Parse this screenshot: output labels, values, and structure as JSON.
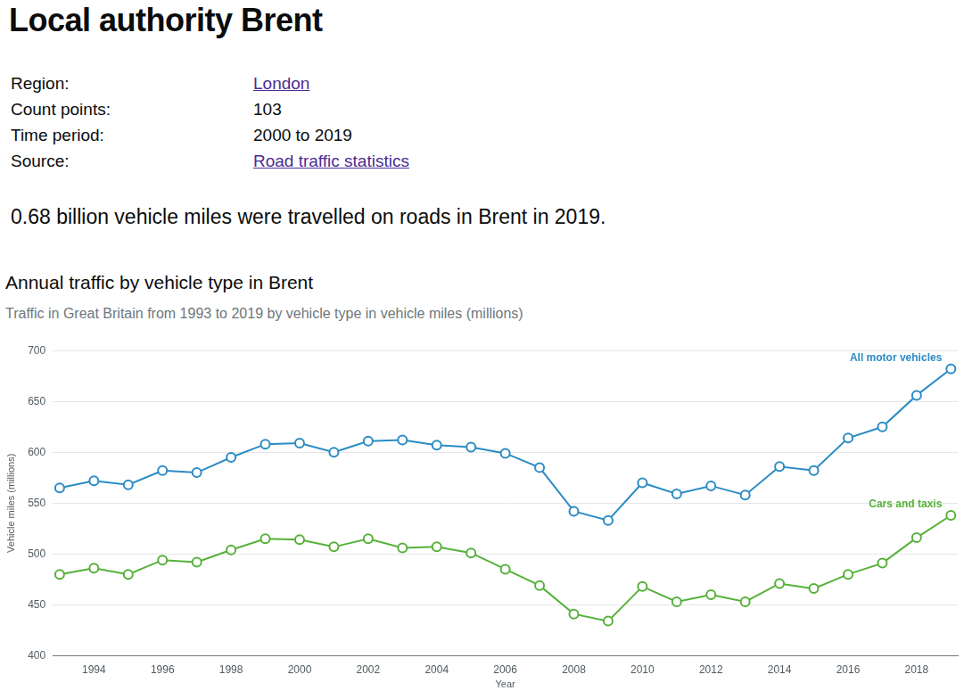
{
  "page": {
    "heading": "Local authority Brent",
    "details": [
      {
        "label": "Region:",
        "value": "London"
      },
      {
        "label": "Count points:",
        "value": 103
      },
      {
        "label": "Time period:",
        "value": "2000 to 2019"
      },
      {
        "label": "Source:",
        "value": "Road traffic statistics"
      }
    ],
    "summary": "0.68 billion vehicle miles were travelled on roads in Brent in 2019."
  },
  "chart_data": {
    "type": "line",
    "title": "Annual traffic by vehicle type in Brent",
    "subtitle": "Traffic in Great Britain from 1993 to 2019 by vehicle type in vehicle miles (millions)",
    "x_label": "Year",
    "y_label": "Vehicle miles (millions)",
    "x": [
      1993,
      1994,
      1995,
      1996,
      1997,
      1998,
      1999,
      2000,
      2001,
      2002,
      2003,
      2004,
      2005,
      2006,
      2007,
      2008,
      2009,
      2010,
      2011,
      2012,
      2013,
      2014,
      2015,
      2016,
      2017,
      2018,
      2019
    ],
    "series": [
      {
        "name": "All motor vehicles",
        "color": "#2b8cc4",
        "marker": "circle",
        "values": [
          565,
          572,
          568,
          582,
          580,
          595,
          608,
          609,
          600,
          611,
          612,
          607,
          605,
          599,
          585,
          542,
          533,
          570,
          559,
          567,
          558,
          586,
          582,
          614,
          625,
          656,
          682
        ]
      },
      {
        "name": "Cars and taxis",
        "color": "#56b13a",
        "marker": "circle",
        "values": [
          480,
          486,
          480,
          494,
          492,
          504,
          515,
          514,
          507,
          515,
          506,
          507,
          501,
          485,
          469,
          441,
          434,
          468,
          453,
          460,
          453,
          471,
          466,
          480,
          491,
          516,
          538
        ]
      }
    ],
    "xlim": [
      1992.8,
      2019.2
    ],
    "xticks": [
      1994,
      1996,
      1998,
      2000,
      2002,
      2004,
      2006,
      2008,
      2010,
      2012,
      2014,
      2016,
      2018
    ],
    "ylim": [
      400,
      700
    ],
    "yticks": [
      400,
      450,
      500,
      550,
      600,
      650,
      700
    ],
    "grid": true
  }
}
